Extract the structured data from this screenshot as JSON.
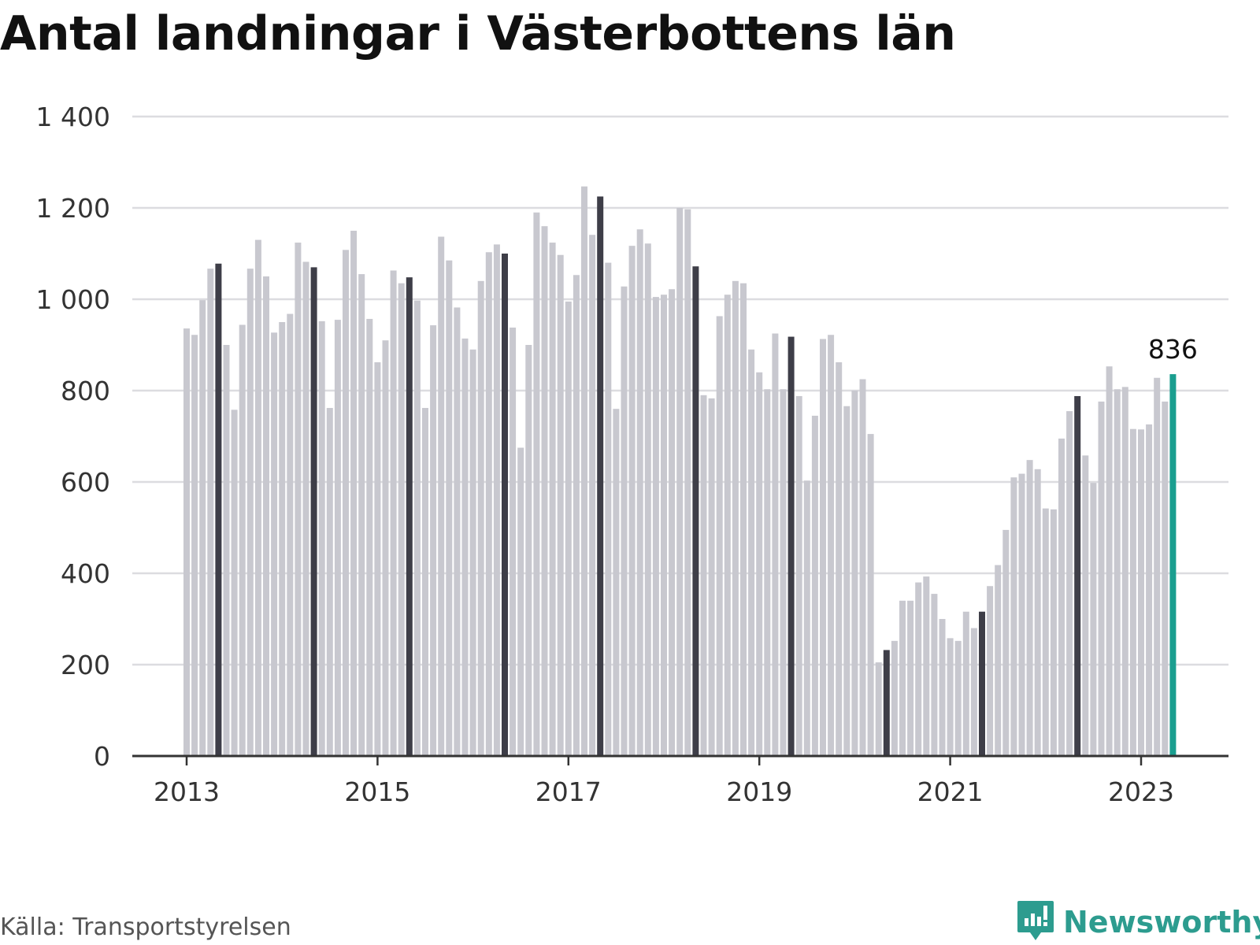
{
  "title": "Antal landningar i Västerbottens län",
  "source": "Källa: Transportstyrelsen",
  "brand": "Newsworthy",
  "colors": {
    "bar": "#c8c8cf",
    "highlight_bar": "#3e3e48",
    "latest_bar": "#1a9e8f",
    "grid": "#dcdce0",
    "axis": "#333333",
    "brand": "#2d9c8f"
  },
  "chart_data": {
    "type": "bar",
    "frequency": "monthly",
    "start": "2013-01",
    "x_tick_labels": [
      "2013",
      "2015",
      "2017",
      "2019",
      "2021",
      "2023"
    ],
    "y_tick_labels": [
      "0",
      "200",
      "400",
      "600",
      "800",
      "1 000",
      "1 200",
      "1 400"
    ],
    "ylim": [
      0,
      1400
    ],
    "grid": true,
    "values": [
      936,
      922,
      998,
      1067,
      1078,
      900,
      758,
      944,
      1067,
      1130,
      1050,
      927,
      950,
      968,
      1124,
      1082,
      1070,
      952,
      762,
      955,
      1108,
      1150,
      1055,
      957,
      862,
      910,
      1063,
      1035,
      1048,
      997,
      762,
      943,
      1137,
      1085,
      982,
      914,
      890,
      1040,
      1103,
      1120,
      1100,
      938,
      675,
      900,
      1190,
      1160,
      1124,
      1097,
      995,
      1053,
      1247,
      1141,
      1225,
      1080,
      760,
      1028,
      1117,
      1153,
      1122,
      1005,
      1010,
      1022,
      1200,
      1197,
      1072,
      790,
      783,
      963,
      1010,
      1040,
      1035,
      890,
      840,
      803,
      925,
      803,
      918,
      788,
      603,
      745,
      913,
      922,
      862,
      766,
      800,
      825,
      705,
      205,
      232,
      252,
      340,
      340,
      380,
      393,
      355,
      300,
      258,
      252,
      316,
      280,
      316,
      372,
      418,
      495,
      610,
      618,
      648,
      628,
      542,
      540,
      695,
      755,
      788,
      658,
      598,
      776,
      853,
      803,
      808,
      716,
      715,
      726,
      828,
      776,
      836
    ],
    "highlight_indices": [
      4,
      16,
      28,
      40,
      52,
      64,
      76,
      88,
      100,
      112
    ],
    "latest_label": "836"
  }
}
